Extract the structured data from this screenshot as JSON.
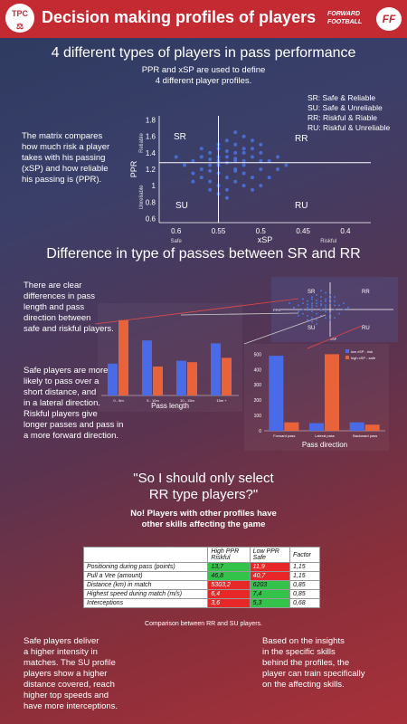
{
  "header": {
    "logo_left": [
      "TPC",
      "⚖"
    ],
    "title": "Decision making profiles of players",
    "brand_line1": "FORWARD",
    "brand_line2": "FOOTBALL",
    "brand_logo": "FF"
  },
  "section1": {
    "heading": "4 different types of players in pass performance",
    "subheading_line1": "PPR and xSP are used to define",
    "subheading_line2": "4 different player profiles.",
    "legend": [
      "SR: Safe & Reliable",
      "SU: Safe & Unreliable",
      "RR: Riskful & Riable",
      "RU: Riskful & Unreliable"
    ],
    "description": [
      "The matrix compares",
      "how much risk a player",
      "takes with his passing",
      "(xSP) and how reliable",
      "his passing is (PPR)."
    ]
  },
  "chart_data": [
    {
      "type": "scatter",
      "xlabel": "xSP",
      "ylabel": "PPR",
      "x_ticks": [
        "0.6",
        "0.55",
        "0.5",
        "0.45",
        "0.4"
      ],
      "y_ticks": [
        "1.8",
        "1.6",
        "1.4",
        "1.2",
        "1",
        "0.8",
        "0.6"
      ],
      "x_side_labels": [
        "Safe",
        "Riskful"
      ],
      "y_side_labels": [
        "Reliable",
        "Unreliable"
      ],
      "quadrants": [
        "SR",
        "RR",
        "SU",
        "RU"
      ],
      "xlim": [
        0.62,
        0.37
      ],
      "ylim": [
        0.55,
        1.85
      ],
      "divider": {
        "x": 0.55,
        "y": 1.28
      },
      "points": [
        [
          0.55,
          1.3
        ],
        [
          0.54,
          1.35
        ],
        [
          0.56,
          1.25
        ],
        [
          0.53,
          1.4
        ],
        [
          0.52,
          1.45
        ],
        [
          0.57,
          1.2
        ],
        [
          0.55,
          1.15
        ],
        [
          0.54,
          1.1
        ],
        [
          0.53,
          1.3
        ],
        [
          0.52,
          1.25
        ],
        [
          0.51,
          1.35
        ],
        [
          0.56,
          1.4
        ],
        [
          0.55,
          1.5
        ],
        [
          0.54,
          1.55
        ],
        [
          0.53,
          1.2
        ],
        [
          0.52,
          1.15
        ],
        [
          0.51,
          1.1
        ],
        [
          0.5,
          1.3
        ],
        [
          0.58,
          1.3
        ],
        [
          0.57,
          1.35
        ],
        [
          0.56,
          1.05
        ],
        [
          0.55,
          1.0
        ],
        [
          0.54,
          0.95
        ],
        [
          0.53,
          1.05
        ],
        [
          0.52,
          1.4
        ],
        [
          0.51,
          1.45
        ],
        [
          0.5,
          1.2
        ],
        [
          0.49,
          1.3
        ],
        [
          0.48,
          1.35
        ],
        [
          0.5,
          1.5
        ],
        [
          0.55,
          1.25
        ],
        [
          0.54,
          1.28
        ],
        [
          0.53,
          1.33
        ],
        [
          0.56,
          1.32
        ],
        [
          0.57,
          1.1
        ],
        [
          0.58,
          1.15
        ],
        [
          0.59,
          1.25
        ],
        [
          0.52,
          1.6
        ],
        [
          0.53,
          1.65
        ],
        [
          0.51,
          1.55
        ],
        [
          0.55,
          0.9
        ],
        [
          0.54,
          0.85
        ],
        [
          0.56,
          0.95
        ],
        [
          0.5,
          1.0
        ],
        [
          0.49,
          1.1
        ],
        [
          0.48,
          1.2
        ],
        [
          0.47,
          1.25
        ],
        [
          0.53,
          1.5
        ],
        [
          0.55,
          1.45
        ],
        [
          0.57,
          1.45
        ],
        [
          0.6,
          1.35
        ],
        [
          0.58,
          1.05
        ],
        [
          0.52,
          1.0
        ],
        [
          0.51,
          0.95
        ],
        [
          0.55,
          1.35
        ],
        [
          0.54,
          1.42
        ],
        [
          0.53,
          1.18
        ],
        [
          0.52,
          1.3
        ],
        [
          0.56,
          1.18
        ],
        [
          0.5,
          1.4
        ]
      ]
    },
    {
      "type": "bar",
      "xlabel": "Pass length",
      "categories": [
        "0 - 5m",
        "5 - 10m",
        "10 - 15m",
        "15m +"
      ],
      "series": [
        {
          "name": "low xSP - risk",
          "color": "#4a6be8",
          "values": [
            110,
            190,
            120,
            180
          ]
        },
        {
          "name": "high xSP - safe",
          "color": "#e8633a",
          "values": [
            260,
            100,
            115,
            130
          ]
        }
      ],
      "ylim": [
        0,
        300
      ]
    },
    {
      "type": "bar",
      "xlabel": "Pass direction",
      "categories": [
        "Forward pass",
        "Lateral pass",
        "Backward pass"
      ],
      "series": [
        {
          "name": "low xSP - risk",
          "color": "#4a6be8",
          "values": [
            490,
            50,
            55
          ]
        },
        {
          "name": "high xSP - safe",
          "color": "#e8633a",
          "values": [
            55,
            500,
            40
          ]
        }
      ],
      "y_ticks": [
        "500",
        "400",
        "300",
        "200",
        "100",
        "0"
      ],
      "ylim": [
        0,
        520
      ]
    }
  ],
  "section2": {
    "heading": "Difference in type of passes between SR and RR",
    "text_a": [
      "There are clear",
      "differences in pass",
      "length and pass",
      "direction between",
      "safe and riskful players."
    ],
    "text_b": [
      "Safe players are more",
      "likely to pass over a",
      "short distance, and",
      "in a lateral direction.",
      "Riskful players give",
      "longer passes and pass in",
      "a more forward direction."
    ],
    "mini_quadrants": [
      "SR",
      "RR",
      "SU",
      "RU"
    ],
    "mini_axis_labels": [
      "PPR",
      "xSP",
      "Safe",
      "Riskful",
      "Reliable",
      "Unreliable"
    ]
  },
  "section3": {
    "quote_line1": "\"So I should only select",
    "quote_line2": "RR type players?\"",
    "answer_line1": "No! Players with other profiles have",
    "answer_line2": "other skills affecting the game",
    "table": {
      "headers": [
        "",
        "High PPR\nRiskful",
        "Low PPR\nSafe",
        "Factor"
      ],
      "rows": [
        [
          "Positioning during pass (points)",
          "13,7",
          "11,9",
          "1,15"
        ],
        [
          "Pull a Vee (amount)",
          "46,8",
          "40,7",
          "1,15"
        ],
        [
          "Distance (km) in match",
          "5303,2",
          "6203",
          "0,85"
        ],
        [
          "Highest speed during match (m/s)",
          "6,4",
          "7,4",
          "0,85"
        ],
        [
          "Interceptions",
          "3,6",
          "5,3",
          "0,68"
        ]
      ],
      "caption": "Comparison between RR and SU players."
    },
    "text_left": [
      "Safe players deliver",
      "a higher intensity in",
      "matches. The SU profile",
      "players show a higher",
      "distance covered, reach",
      "higher top speeds and",
      "have more interceptions."
    ],
    "text_right": [
      "Based on the insights",
      "in the specific skills",
      "behind the profiles, the",
      "player can train specifically",
      "on the affecting skills."
    ]
  }
}
